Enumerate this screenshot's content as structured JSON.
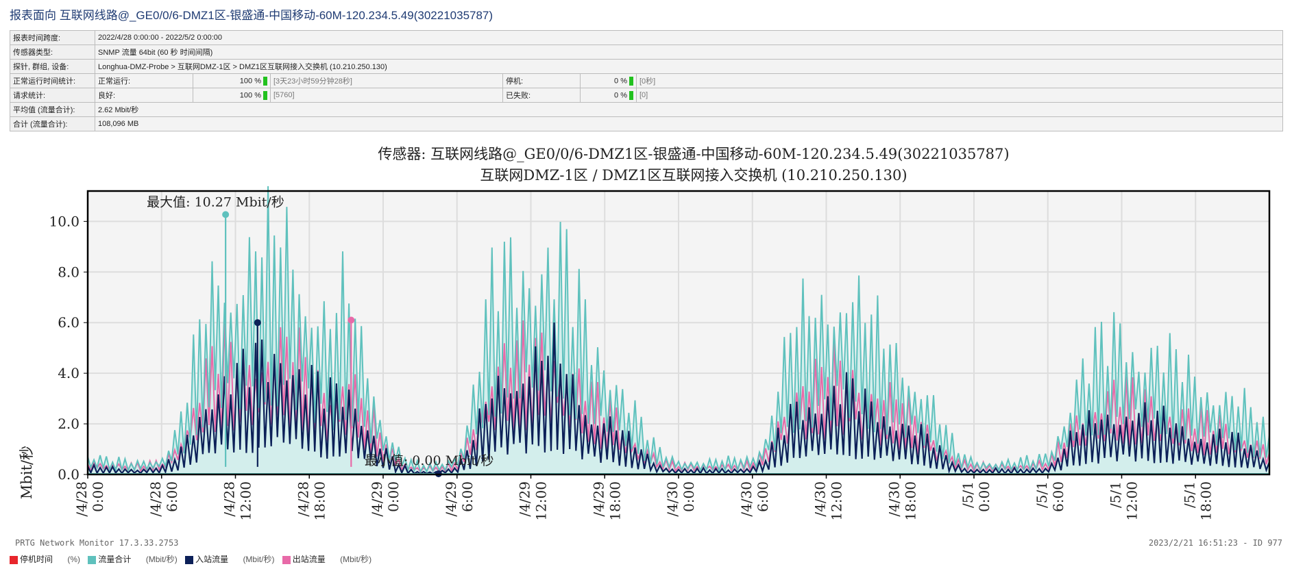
{
  "report_title": "报表面向 互联网线路@_GE0/0/6-DMZ1区-银盛通-中国移动-60M-120.234.5.49(30221035787)",
  "info": {
    "time_span_label": "报表时间跨度:",
    "time_span_value": "2022/4/28 0:00:00 - 2022/5/2 0:00:00",
    "sensor_type_label": "传感器类型:",
    "sensor_type_value": "SNMP 流量 64bit (60 秒 时间间隔)",
    "probe_label": "探针, 群组, 设备:",
    "probe_value": "Longhua-DMZ-Probe > 互联网DMZ-1区 > DMZ1区互联网接入交换机 (10.210.250.130)",
    "uptime_label": "正常运行时间统计:",
    "uptime_up_label": "正常运行:",
    "uptime_up_pct": "100 %",
    "uptime_up_detail": "[3天23小时59分钟28秒]",
    "uptime_down_label": "停机:",
    "uptime_down_pct": "0 %",
    "uptime_down_detail": "[0秒]",
    "requests_label": "请求统计:",
    "requests_good_label": "良好:",
    "requests_good_pct": "100 %",
    "requests_good_detail": "[5760]",
    "requests_fail_label": "已失败:",
    "requests_fail_pct": "0 %",
    "requests_fail_detail": "[0]",
    "avg_label": "平均值 (流量合计):",
    "avg_value": "2.62 Mbit/秒",
    "total_label": "合计 (流量合计):",
    "total_value": "108,096 MB"
  },
  "chart_data": {
    "type": "area",
    "title": "传感器: 互联网线路@_GE0/0/6-DMZ1区-银盛通-中国移动-60M-120.234.5.49(30221035787)",
    "subtitle": "互联网DMZ-1区 / DMZ1区互联网接入交换机 (10.210.250.130)",
    "ylabel": "Mbit/秒",
    "ylim": [
      0,
      11.2
    ],
    "yticks": [
      "0.0",
      "2.0",
      "4.0",
      "6.0",
      "8.0",
      "10.0"
    ],
    "x_range_hours": [
      0,
      96
    ],
    "xtick_labels": [
      "/4/28 0:00",
      "/4/28 6:00",
      "/4/28 12:00",
      "/4/28 18:00",
      "/4/29 0:00",
      "/4/29 6:00",
      "/4/29 12:00",
      "/4/29 18:00",
      "/4/30 0:00",
      "/4/30 6:00",
      "/4/30 12:00",
      "/4/30 18:00",
      "/5/1 0:00",
      "/5/1 6:00",
      "/5/1 12:00",
      "/5/1 18:00"
    ],
    "max_label": "最大值: 10.27 Mbit/秒",
    "min_label": "最小值: 0.00 Mbit/秒",
    "max_point": {
      "x_hours": 11.2,
      "y": 10.27
    },
    "min_point": {
      "x_hours": 28.5,
      "y": 0.0
    },
    "inbound_peak_point": {
      "x_hours": 13.8,
      "y": 6.0
    },
    "outbound_peak_point": {
      "x_hours": 21.4,
      "y": 6.1
    },
    "grid": true,
    "legend_position": "bottom",
    "series": [
      {
        "name": "流量合计",
        "unit": "(Mbit/秒)",
        "color": "#5fc1bd",
        "fill": "#d3eeec",
        "envelope": [
          [
            0,
            0.8
          ],
          [
            2,
            0.6
          ],
          [
            4,
            0.5
          ],
          [
            6,
            0.7
          ],
          [
            7,
            1.5
          ],
          [
            8,
            3.0
          ],
          [
            9,
            5.5
          ],
          [
            10,
            7.5
          ],
          [
            11,
            8.5
          ],
          [
            12,
            8.2
          ],
          [
            13,
            8.6
          ],
          [
            14,
            9.0
          ],
          [
            15,
            9.2
          ],
          [
            16,
            9.5
          ],
          [
            17,
            8.8
          ],
          [
            18,
            7.5
          ],
          [
            19,
            6.5
          ],
          [
            20,
            6.0
          ],
          [
            21,
            7.5
          ],
          [
            22,
            5.5
          ],
          [
            23,
            4.0
          ],
          [
            24,
            2.2
          ],
          [
            25,
            1.2
          ],
          [
            26,
            0.6
          ],
          [
            27,
            0.4
          ],
          [
            28,
            0.4
          ],
          [
            29,
            0.5
          ],
          [
            30,
            0.8
          ],
          [
            31,
            2.5
          ],
          [
            32,
            5.5
          ],
          [
            33,
            7.8
          ],
          [
            34,
            8.2
          ],
          [
            35,
            8.5
          ],
          [
            36,
            8.8
          ],
          [
            37,
            9.0
          ],
          [
            38,
            9.2
          ],
          [
            39,
            8.2
          ],
          [
            40,
            6.8
          ],
          [
            41,
            5.5
          ],
          [
            42,
            4.8
          ],
          [
            43,
            4.0
          ],
          [
            44,
            3.0
          ],
          [
            45,
            2.0
          ],
          [
            46,
            1.2
          ],
          [
            47,
            0.8
          ],
          [
            48,
            0.6
          ],
          [
            50,
            0.5
          ],
          [
            52,
            0.6
          ],
          [
            54,
            0.7
          ],
          [
            55,
            1.5
          ],
          [
            56,
            3.5
          ],
          [
            57,
            5.5
          ],
          [
            58,
            6.2
          ],
          [
            59,
            6.5
          ],
          [
            60,
            7.0
          ],
          [
            61,
            7.8
          ],
          [
            62,
            7.5
          ],
          [
            63,
            6.5
          ],
          [
            64,
            5.8
          ],
          [
            65,
            5.2
          ],
          [
            66,
            4.8
          ],
          [
            67,
            4.2
          ],
          [
            68,
            3.5
          ],
          [
            69,
            2.5
          ],
          [
            70,
            1.5
          ],
          [
            71,
            0.8
          ],
          [
            72,
            0.6
          ],
          [
            74,
            0.5
          ],
          [
            76,
            0.6
          ],
          [
            78,
            0.8
          ],
          [
            79,
            2.0
          ],
          [
            80,
            3.5
          ],
          [
            81,
            4.5
          ],
          [
            82,
            5.0
          ],
          [
            83,
            5.5
          ],
          [
            84,
            5.8
          ],
          [
            85,
            5.5
          ],
          [
            86,
            5.2
          ],
          [
            87,
            5.0
          ],
          [
            88,
            4.6
          ],
          [
            89,
            4.2
          ],
          [
            90,
            3.8
          ],
          [
            91,
            3.6
          ],
          [
            92,
            3.5
          ],
          [
            93,
            3.2
          ],
          [
            94,
            2.8
          ],
          [
            95,
            2.2
          ],
          [
            96,
            1.6
          ]
        ]
      },
      {
        "name": "入站流量",
        "unit": "(Mbit/秒)",
        "color": "#0c2058",
        "fill": "none",
        "envelope": [
          [
            0,
            0.3
          ],
          [
            4,
            0.2
          ],
          [
            6,
            0.3
          ],
          [
            7,
            0.6
          ],
          [
            8,
            1.2
          ],
          [
            9,
            2.2
          ],
          [
            10,
            3.2
          ],
          [
            11,
            3.8
          ],
          [
            12,
            3.8
          ],
          [
            13,
            4.1
          ],
          [
            14,
            4.4
          ],
          [
            15,
            4.6
          ],
          [
            16,
            4.8
          ],
          [
            17,
            4.3
          ],
          [
            18,
            3.8
          ],
          [
            19,
            3.2
          ],
          [
            20,
            3.0
          ],
          [
            21,
            3.3
          ],
          [
            22,
            2.6
          ],
          [
            23,
            1.8
          ],
          [
            24,
            1.0
          ],
          [
            25,
            0.5
          ],
          [
            26,
            0.2
          ],
          [
            27,
            0.1
          ],
          [
            28,
            0.1
          ],
          [
            29,
            0.2
          ],
          [
            30,
            0.3
          ],
          [
            31,
            1.0
          ],
          [
            32,
            2.2
          ],
          [
            33,
            3.3
          ],
          [
            34,
            3.8
          ],
          [
            35,
            4.0
          ],
          [
            36,
            4.2
          ],
          [
            37,
            4.4
          ],
          [
            38,
            4.6
          ],
          [
            39,
            3.8
          ],
          [
            40,
            3.0
          ],
          [
            41,
            2.4
          ],
          [
            42,
            2.1
          ],
          [
            43,
            1.8
          ],
          [
            44,
            1.3
          ],
          [
            45,
            0.9
          ],
          [
            46,
            0.5
          ],
          [
            47,
            0.3
          ],
          [
            48,
            0.2
          ],
          [
            52,
            0.2
          ],
          [
            54,
            0.3
          ],
          [
            55,
            0.6
          ],
          [
            56,
            1.4
          ],
          [
            57,
            2.3
          ],
          [
            58,
            2.7
          ],
          [
            59,
            2.9
          ],
          [
            60,
            3.1
          ],
          [
            61,
            3.4
          ],
          [
            62,
            3.2
          ],
          [
            63,
            2.8
          ],
          [
            64,
            2.5
          ],
          [
            65,
            2.3
          ],
          [
            66,
            2.1
          ],
          [
            67,
            1.8
          ],
          [
            68,
            1.5
          ],
          [
            69,
            1.0
          ],
          [
            70,
            0.6
          ],
          [
            71,
            0.3
          ],
          [
            72,
            0.2
          ],
          [
            76,
            0.2
          ],
          [
            78,
            0.3
          ],
          [
            79,
            0.8
          ],
          [
            80,
            1.5
          ],
          [
            81,
            1.9
          ],
          [
            82,
            2.1
          ],
          [
            83,
            2.3
          ],
          [
            84,
            2.5
          ],
          [
            85,
            2.4
          ],
          [
            86,
            2.3
          ],
          [
            87,
            2.2
          ],
          [
            88,
            2.0
          ],
          [
            89,
            1.8
          ],
          [
            90,
            1.6
          ],
          [
            91,
            1.5
          ],
          [
            92,
            1.5
          ],
          [
            93,
            1.4
          ],
          [
            94,
            1.2
          ],
          [
            95,
            0.9
          ],
          [
            96,
            0.6
          ]
        ]
      },
      {
        "name": "出站流量",
        "unit": "(Mbit/秒)",
        "color": "#e86aa8",
        "fill": "none",
        "envelope": [
          [
            0,
            0.5
          ],
          [
            4,
            0.4
          ],
          [
            6,
            0.5
          ],
          [
            7,
            1.0
          ],
          [
            8,
            2.0
          ],
          [
            9,
            3.5
          ],
          [
            10,
            4.5
          ],
          [
            11,
            5.0
          ],
          [
            12,
            4.6
          ],
          [
            13,
            4.8
          ],
          [
            14,
            5.0
          ],
          [
            15,
            5.1
          ],
          [
            16,
            5.2
          ],
          [
            17,
            4.8
          ],
          [
            18,
            4.2
          ],
          [
            19,
            3.7
          ],
          [
            20,
            3.4
          ],
          [
            21,
            4.4
          ],
          [
            22,
            3.2
          ],
          [
            23,
            2.4
          ],
          [
            24,
            1.4
          ],
          [
            25,
            0.8
          ],
          [
            26,
            0.4
          ],
          [
            27,
            0.3
          ],
          [
            28,
            0.3
          ],
          [
            29,
            0.3
          ],
          [
            30,
            0.5
          ],
          [
            31,
            1.5
          ],
          [
            32,
            3.4
          ],
          [
            33,
            4.6
          ],
          [
            34,
            4.8
          ],
          [
            35,
            4.9
          ],
          [
            36,
            5.0
          ],
          [
            37,
            5.1
          ],
          [
            38,
            5.2
          ],
          [
            39,
            4.6
          ],
          [
            40,
            3.9
          ],
          [
            41,
            3.2
          ],
          [
            42,
            2.8
          ],
          [
            43,
            2.4
          ],
          [
            44,
            1.8
          ],
          [
            45,
            1.2
          ],
          [
            46,
            0.8
          ],
          [
            47,
            0.5
          ],
          [
            48,
            0.4
          ],
          [
            52,
            0.4
          ],
          [
            54,
            0.5
          ],
          [
            55,
            0.9
          ],
          [
            56,
            2.1
          ],
          [
            57,
            3.3
          ],
          [
            58,
            3.7
          ],
          [
            59,
            3.8
          ],
          [
            60,
            4.1
          ],
          [
            61,
            4.5
          ],
          [
            62,
            4.3
          ],
          [
            63,
            3.8
          ],
          [
            64,
            3.4
          ],
          [
            65,
            3.1
          ],
          [
            66,
            2.9
          ],
          [
            67,
            2.5
          ],
          [
            68,
            2.1
          ],
          [
            69,
            1.5
          ],
          [
            70,
            0.9
          ],
          [
            71,
            0.5
          ],
          [
            72,
            0.4
          ],
          [
            76,
            0.4
          ],
          [
            78,
            0.5
          ],
          [
            79,
            1.2
          ],
          [
            80,
            2.1
          ],
          [
            81,
            2.7
          ],
          [
            82,
            3.0
          ],
          [
            83,
            3.3
          ],
          [
            84,
            3.4
          ],
          [
            85,
            3.2
          ],
          [
            86,
            3.1
          ],
          [
            87,
            3.0
          ],
          [
            88,
            2.8
          ],
          [
            89,
            2.5
          ],
          [
            90,
            2.3
          ],
          [
            91,
            2.2
          ],
          [
            92,
            2.1
          ],
          [
            93,
            1.9
          ],
          [
            94,
            1.7
          ],
          [
            95,
            1.3
          ],
          [
            96,
            1.0
          ]
        ]
      }
    ],
    "downtime": {
      "name": "停机时间",
      "unit": "(%)",
      "color": "#e8262c"
    }
  },
  "footer": {
    "left": "PRTG Network Monitor 17.3.33.2753",
    "right": "2023/2/21 16:51:23 - ID 977"
  }
}
